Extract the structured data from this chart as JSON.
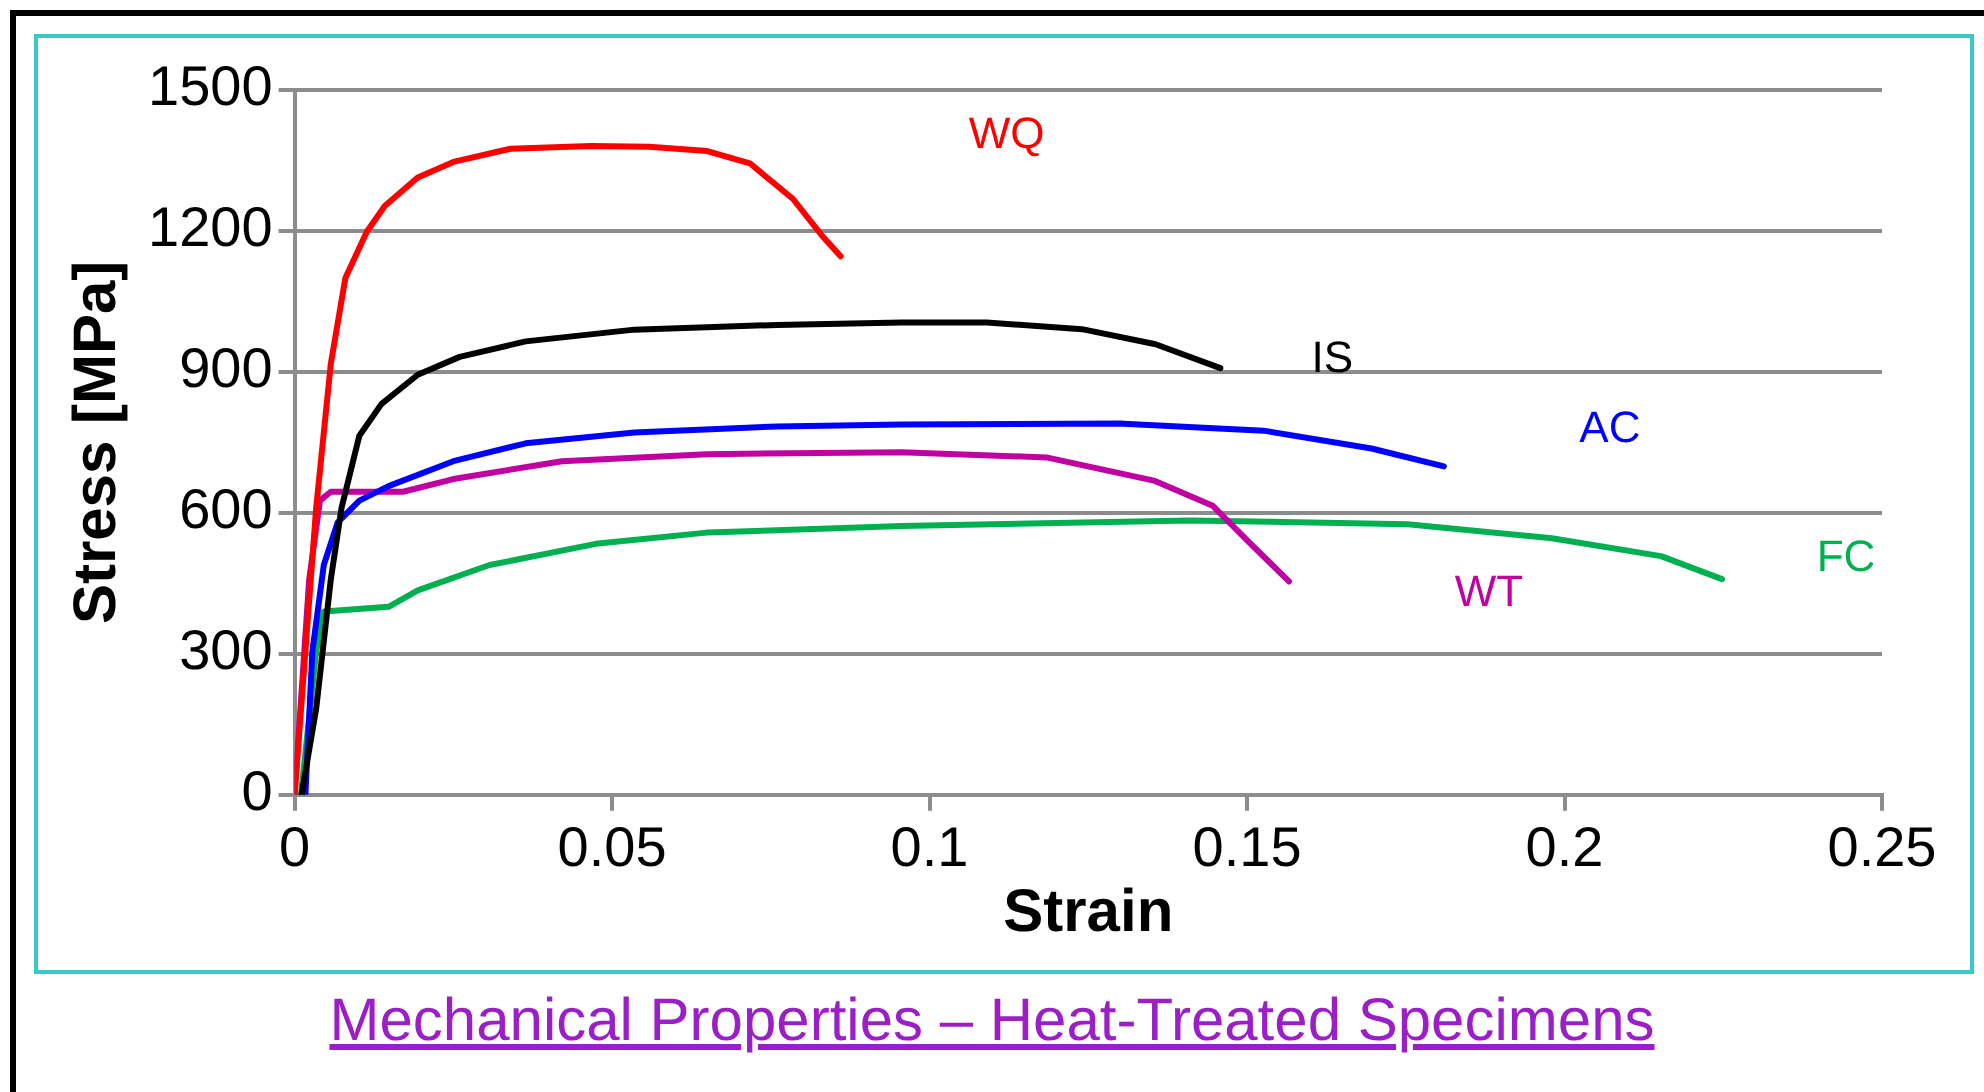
{
  "chart_data": {
    "type": "line",
    "title": "Mechanical Properties – Heat-Treated Specimens",
    "xlabel": "Strain",
    "ylabel": "Stress [MPa]",
    "xlim": [
      0,
      0.25
    ],
    "xticks": [
      0,
      0.05,
      0.1,
      0.15,
      0.2,
      0.25
    ],
    "ylim": [
      0,
      1500
    ],
    "yticks": [
      0,
      300,
      600,
      900,
      1200,
      1500
    ],
    "grid": "y",
    "legend": false,
    "marker": "none",
    "line_style": "solid",
    "series": [
      {
        "name": "WQ",
        "color": "#ff0000",
        "x": [
          0,
          0.0034,
          0.0057,
          0.008,
          0.0114,
          0.0142,
          0.0194,
          0.025,
          0.034,
          0.0467,
          0.0558,
          0.065,
          0.0717,
          0.0785,
          0.083,
          0.086
        ],
        "values": [
          0,
          611,
          917,
          1100,
          1199,
          1253,
          1314,
          1347,
          1375,
          1381,
          1379,
          1370,
          1344,
          1268,
          1191,
          1146
        ]
      },
      {
        "name": "IS",
        "color": "#000000",
        "x": [
          0.0011,
          0.0034,
          0.0057,
          0.0074,
          0.0102,
          0.0137,
          0.0194,
          0.026,
          0.0364,
          0.0535,
          0.076,
          0.0956,
          0.109,
          0.124,
          0.1356,
          0.1458
        ],
        "values": [
          0,
          183,
          458,
          611,
          764,
          832,
          894,
          932,
          965,
          990,
          1000,
          1005,
          1005,
          991,
          959,
          908
        ]
      },
      {
        "name": "AC",
        "color": "#0000ff",
        "x": [
          0.0017,
          0.0028,
          0.0046,
          0.0068,
          0.0102,
          0.0148,
          0.025,
          0.0364,
          0.0535,
          0.076,
          0.0956,
          0.1298,
          0.1526,
          0.1696,
          0.181
        ],
        "values": [
          0,
          305,
          489,
          580,
          626,
          657,
          710,
          748,
          771,
          784,
          788,
          790,
          775,
          737,
          699
        ]
      },
      {
        "name": "WT",
        "color": "#c000a0",
        "x": [
          0,
          0.0023,
          0.004,
          0.0057,
          0.0171,
          0.025,
          0.0421,
          0.0649,
          0.0956,
          0.1184,
          0.1355,
          0.1446,
          0.1503,
          0.1566
        ],
        "values": [
          0,
          458,
          626,
          645,
          645,
          672,
          710,
          725,
          729,
          718,
          668,
          615,
          538,
          454
        ]
      },
      {
        "name": "FC",
        "color": "#00b050",
        "x": [
          0.001,
          0.0034,
          0.0046,
          0.0148,
          0.0194,
          0.0307,
          0.0478,
          0.0649,
          0.0956,
          0.141,
          0.1753,
          0.198,
          0.2152,
          0.2248
        ],
        "values": [
          0,
          305,
          390,
          400,
          435,
          489,
          535,
          558,
          572,
          584,
          576,
          546,
          508,
          459
        ]
      }
    ]
  }
}
